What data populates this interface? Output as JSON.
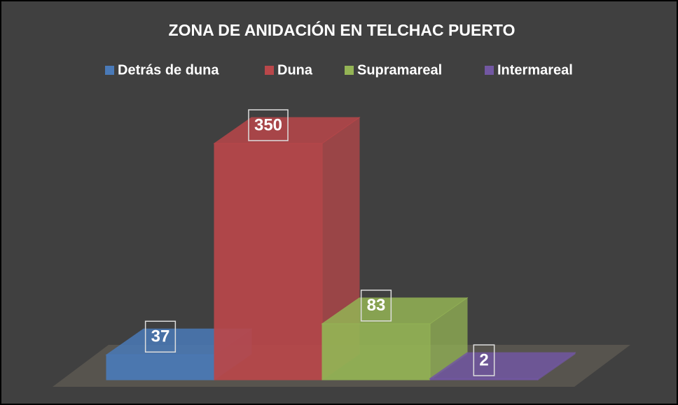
{
  "chart_data": {
    "type": "bar",
    "title": "ZONA DE ANIDACIÓN EN TELCHAC PUERTO",
    "series": [
      {
        "name": "Detrás de duna",
        "color": "#4a7ab8",
        "values": [
          37
        ]
      },
      {
        "name": "Duna",
        "color": "#b9474a",
        "values": [
          350
        ]
      },
      {
        "name": "Supramareal",
        "color": "#94b455",
        "values": [
          83
        ]
      },
      {
        "name": "Intermareal",
        "color": "#7257a2",
        "values": [
          2
        ]
      }
    ]
  }
}
